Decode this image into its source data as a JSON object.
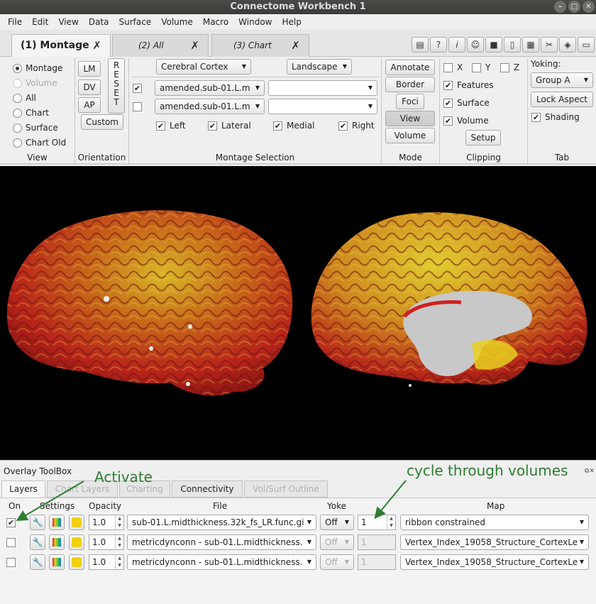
{
  "window": {
    "title": "Connectome Workbench 1"
  },
  "menu": [
    "File",
    "Edit",
    "View",
    "Data",
    "Surface",
    "Volume",
    "Macro",
    "Window",
    "Help"
  ],
  "tabs": [
    {
      "label": "(1) Montage",
      "active": true
    },
    {
      "label": "(2) All",
      "active": false
    },
    {
      "label": "(3) Chart",
      "active": false
    }
  ],
  "toolbar_icons": [
    "info-bubble-icon",
    "help-icon",
    "information-icon",
    "identify-brain-icon",
    "movie-camera-icon",
    "scene-icon",
    "clapper-icon",
    "tools-icon",
    "layers-icon",
    "toolbox-icon"
  ],
  "view": {
    "title": "View",
    "options": [
      {
        "label": "Montage",
        "selected": true,
        "enabled": true
      },
      {
        "label": "Volume",
        "selected": false,
        "enabled": false
      },
      {
        "label": "All",
        "selected": false,
        "enabled": true
      },
      {
        "label": "Chart",
        "selected": false,
        "enabled": true
      },
      {
        "label": "Surface",
        "selected": false,
        "enabled": true
      },
      {
        "label": "Chart Old",
        "selected": false,
        "enabled": true
      }
    ]
  },
  "orientation": {
    "title": "Orientation",
    "lm": "LM",
    "dv": "DV",
    "ap": "AP",
    "reset": [
      "R",
      "E",
      "S",
      "E",
      "T"
    ],
    "custom": "Custom"
  },
  "montage": {
    "title": "Montage Selection",
    "structure": "Cerebral Cortex",
    "layout": "Landscape",
    "rows": [
      {
        "checked": true,
        "surface": "amended.sub-01.L.m",
        "second": ""
      },
      {
        "checked": false,
        "surface": "amended.sub-01.L.m",
        "second": ""
      }
    ],
    "options": [
      {
        "label": "Left",
        "checked": true
      },
      {
        "label": "Lateral",
        "checked": true
      },
      {
        "label": "Medial",
        "checked": true
      },
      {
        "label": "Right",
        "checked": true
      }
    ]
  },
  "mode": {
    "title": "Mode",
    "buttons": [
      {
        "label": "Annotate",
        "pressed": false
      },
      {
        "label": "Border",
        "pressed": false
      },
      {
        "label": "Foci",
        "pressed": false
      },
      {
        "label": "View",
        "pressed": true
      },
      {
        "label": "Volume",
        "pressed": false
      }
    ]
  },
  "clipping": {
    "title": "Clipping",
    "axes": [
      {
        "label": "X",
        "checked": false
      },
      {
        "label": "Y",
        "checked": false
      },
      {
        "label": "Z",
        "checked": false
      }
    ],
    "options": [
      {
        "label": "Features",
        "checked": true
      },
      {
        "label": "Surface",
        "checked": true
      },
      {
        "label": "Volume",
        "checked": true
      }
    ],
    "setup": "Setup"
  },
  "tab_section": {
    "title": "Tab",
    "yoking_label": "Yoking:",
    "yoking_group": "Group A",
    "lock_aspect": "Lock Aspect",
    "shading": {
      "label": "Shading",
      "checked": true
    }
  },
  "toolbox": {
    "title": "Overlay ToolBox",
    "tabs": [
      {
        "label": "Layers",
        "active": true,
        "enabled": true
      },
      {
        "label": "Chart Layers",
        "active": false,
        "enabled": false
      },
      {
        "label": "Charting",
        "active": false,
        "enabled": false
      },
      {
        "label": "Connectivity",
        "active": false,
        "enabled": true
      },
      {
        "label": "Vol/Surf Outline",
        "active": false,
        "enabled": false
      }
    ],
    "columns": {
      "on": "On",
      "settings": "Settings",
      "opacity": "Opacity",
      "file": "File",
      "yoke": "Yoke",
      "map": "Map"
    },
    "layers": [
      {
        "on": true,
        "opacity": "1.0",
        "file": "sub-01.L.midthickness.32k_fs_LR.func.gi",
        "yoke": "Off",
        "yoke_enabled": true,
        "map_index": "1",
        "map": "ribbon constrained"
      },
      {
        "on": false,
        "opacity": "1.0",
        "file": "metricdynconn - sub-01.L.midthickness.",
        "yoke": "Off",
        "yoke_enabled": false,
        "map_index": "1",
        "map": "Vertex_Index_19058_Structure_CortexLe"
      },
      {
        "on": false,
        "opacity": "1.0",
        "file": "metricdynconn - sub-01.L.midthickness.",
        "yoke": "Off",
        "yoke_enabled": false,
        "map_index": "1",
        "map": "Vertex_Index_19058_Structure_CortexLe"
      }
    ]
  },
  "annotations": {
    "activate": "Activate",
    "cycle": "cycle through volumes"
  },
  "colors": {
    "annotation": "#2e7d32",
    "viewport": "#000000",
    "cortex_red": "#c0201a",
    "cortex_yellow": "#e8d020"
  }
}
